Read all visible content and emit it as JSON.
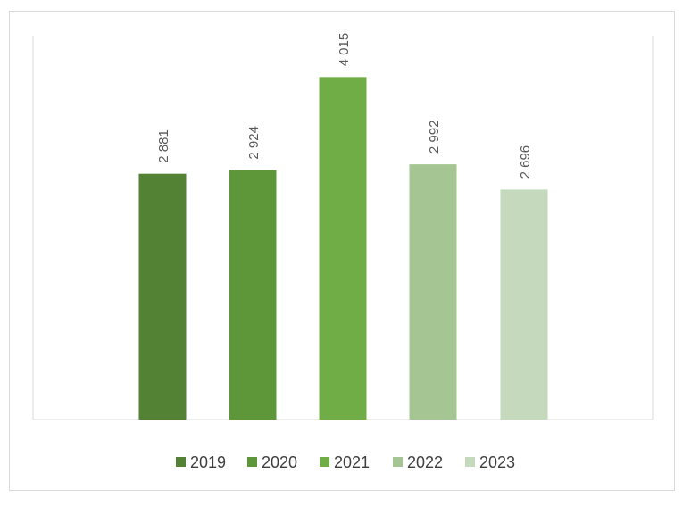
{
  "chart_data": {
    "type": "bar",
    "title": "",
    "xlabel": "",
    "ylabel": "",
    "categories": [
      "2019",
      "2020",
      "2021",
      "2022",
      "2023"
    ],
    "values": [
      2881,
      2924,
      4015,
      2992,
      2696
    ],
    "data_labels": [
      "2 881",
      "2 924",
      "4 015",
      "2 992",
      "2 696"
    ],
    "colors": [
      "#548235",
      "#5e9739",
      "#70ad47",
      "#a5c692",
      "#c5d9bd"
    ],
    "ylim": [
      0,
      4500
    ],
    "grid": false,
    "legend": {
      "position": "bottom",
      "entries": [
        "2019",
        "2020",
        "2021",
        "2022",
        "2023"
      ]
    }
  }
}
